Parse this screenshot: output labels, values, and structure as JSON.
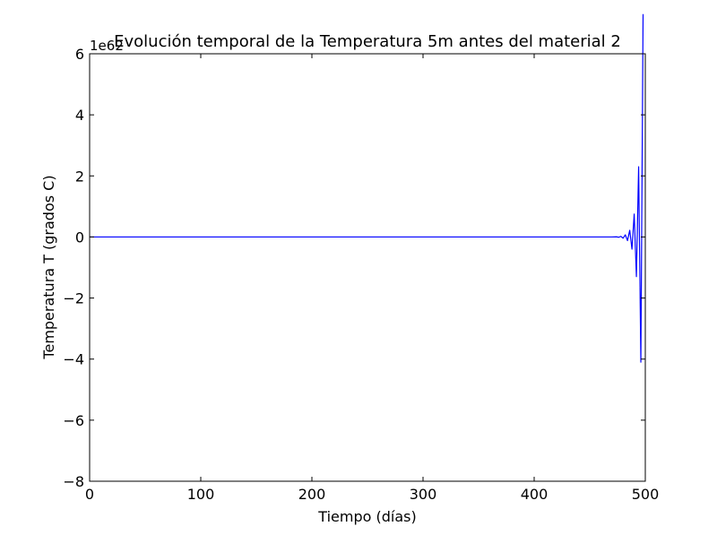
{
  "chart_data": {
    "type": "line",
    "title": "Evolución temporal de la Temperatura 5m antes del material 2",
    "xlabel": "Tiempo (días)",
    "ylabel": "Temperatura T (grados C)",
    "offset_label": "1e62",
    "xlim": [
      0,
      500
    ],
    "ylim": [
      -8,
      6
    ],
    "x_ticks": [
      0,
      100,
      200,
      300,
      400,
      500
    ],
    "x_tick_labels": [
      "0",
      "100",
      "200",
      "300",
      "400",
      "500"
    ],
    "y_ticks": [
      -8,
      -6,
      -4,
      -2,
      0,
      2,
      4,
      6
    ],
    "y_tick_labels": [
      "−8",
      "−6",
      "−4",
      "−2",
      "0",
      "2",
      "4",
      "6"
    ],
    "grid": false,
    "series": [
      {
        "color": "#0000ff",
        "x": [
          0,
          470,
          474,
          476,
          478,
          480,
          482,
          484,
          486,
          488,
          490,
          492,
          494,
          496,
          498
        ],
        "y": [
          0,
          0,
          0.005,
          -0.01,
          0.02,
          -0.04,
          0.07,
          -0.12,
          0.22,
          -0.4,
          0.75,
          -1.3,
          2.3,
          -4.1,
          7.3
        ]
      }
    ]
  }
}
